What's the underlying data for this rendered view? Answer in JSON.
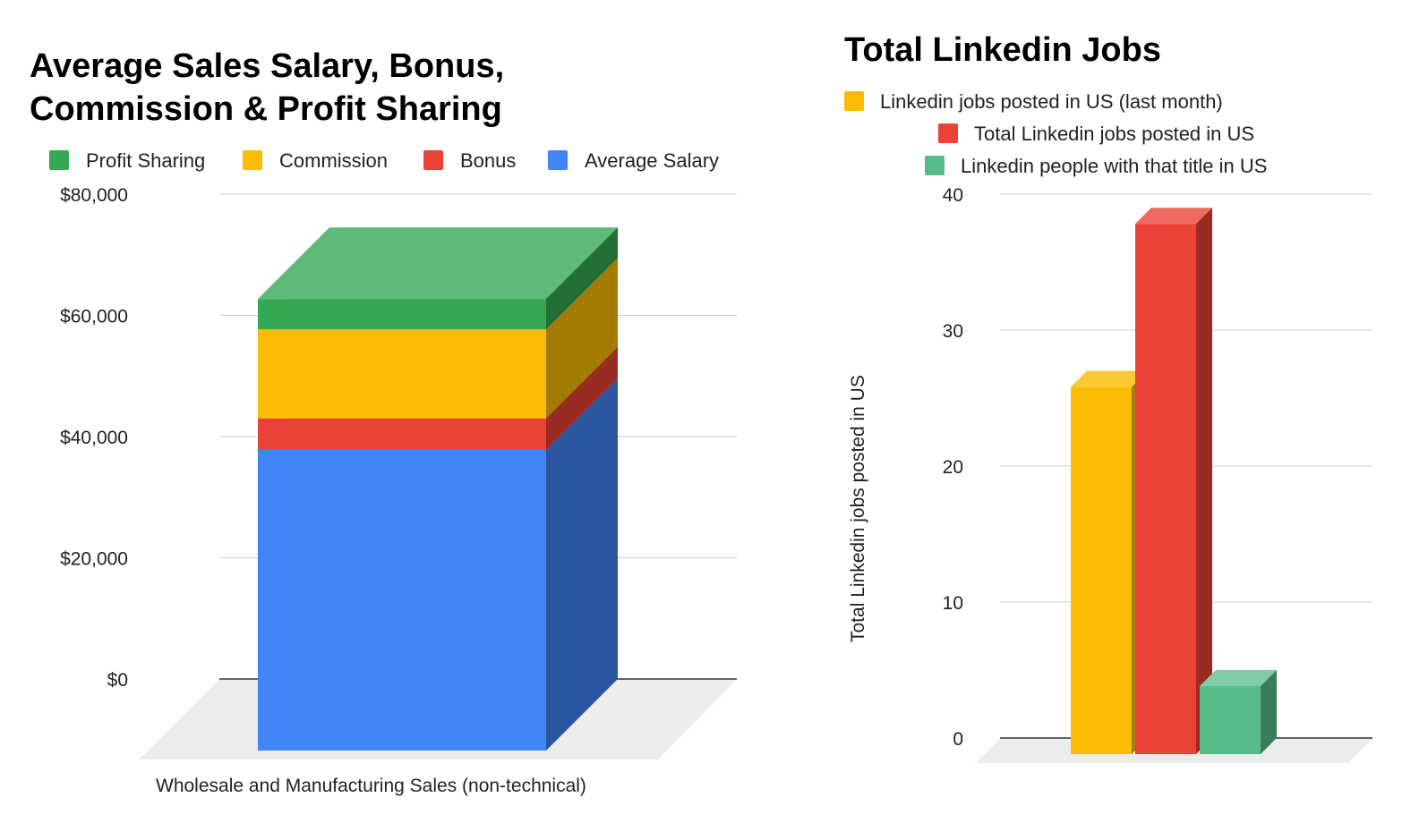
{
  "chart_data": [
    {
      "type": "bar",
      "stacked": true,
      "three_d": true,
      "title_lines": [
        "Average Sales Salary, Bonus,",
        "Commission & Profit Sharing"
      ],
      "categories": [
        "Wholesale and Manufacturing Sales (non-technical)"
      ],
      "series": [
        {
          "name": "Average Salary",
          "values": [
            49600
          ],
          "color": "#4285f4",
          "side": "#2a56a0",
          "top": "#6fa0f6"
        },
        {
          "name": "Bonus",
          "values": [
            5200
          ],
          "color": "#ea4335",
          "side": "#992b22",
          "top": "#ee6a5e"
        },
        {
          "name": "Commission",
          "values": [
            14700
          ],
          "color": "#fbbc04",
          "side": "#a37a02",
          "top": "#fcc935"
        },
        {
          "name": "Profit Sharing",
          "values": [
            5000
          ],
          "color": "#34a853",
          "side": "#216e36",
          "top": "#5eba78"
        }
      ],
      "legend_order": [
        "Profit Sharing",
        "Commission",
        "Bonus",
        "Average Salary"
      ],
      "yticks": [
        "$0",
        "$20,000",
        "$40,000",
        "$60,000",
        "$80,000"
      ],
      "ytick_values": [
        0,
        20000,
        40000,
        60000,
        80000
      ],
      "ylim": [
        0,
        80000
      ],
      "legend": "top",
      "grid": true
    },
    {
      "type": "bar",
      "three_d": true,
      "title": "Total Linkedin Jobs",
      "ylabel": "Total Linkedin jobs posted in US",
      "series": [
        {
          "name": "Linkedin jobs posted in US (last month)",
          "values": [
            27
          ],
          "color": "#fbbc04",
          "side": "#a37a02",
          "top": "#fcc935"
        },
        {
          "name": "Total Linkedin jobs posted in US",
          "values": [
            39
          ],
          "color": "#ea4335",
          "side": "#992b22",
          "top": "#ee6a5e"
        },
        {
          "name": "Linkedin people with that title in US",
          "values": [
            5
          ],
          "color": "#57bb8a",
          "side": "#3a7c5b",
          "top": "#7fcca6"
        }
      ],
      "yticks": [
        "0",
        "10",
        "20",
        "30",
        "40"
      ],
      "ytick_values": [
        0,
        10,
        20,
        30,
        40
      ],
      "ylim": [
        0,
        40
      ],
      "legend": "top",
      "grid": true
    }
  ]
}
